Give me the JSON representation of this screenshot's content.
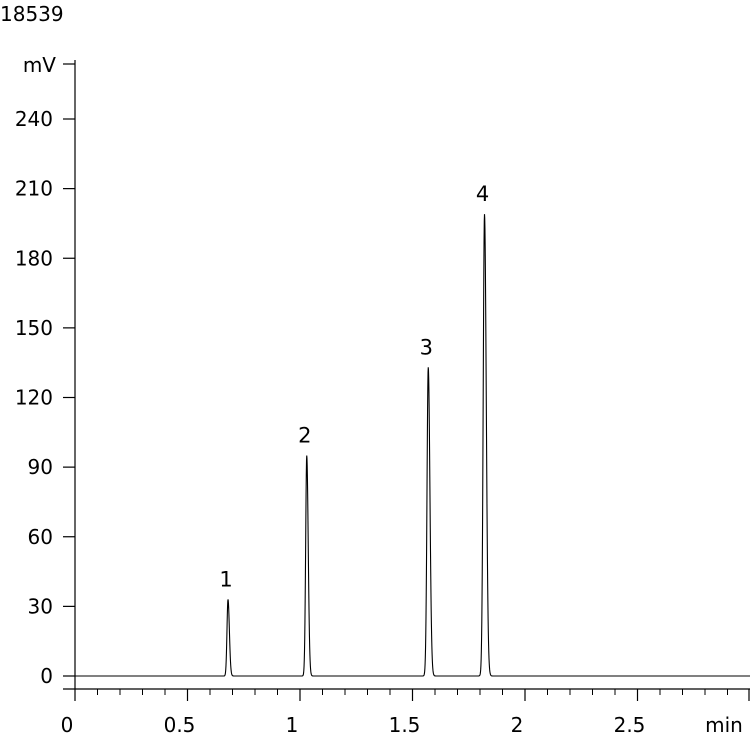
{
  "figure_id": "18539",
  "chart_data": {
    "type": "line",
    "title": "",
    "xlabel": "min",
    "ylabel": "mV",
    "xlim": [
      0,
      3
    ],
    "ylim": [
      -5,
      265
    ],
    "x_ticks": [
      0,
      0.5,
      1,
      1.5,
      2,
      2.5
    ],
    "x_tick_labels": [
      "0",
      "0.5",
      "1",
      "1.5",
      "2",
      "2.5"
    ],
    "y_ticks": [
      0,
      30,
      60,
      90,
      120,
      150,
      180,
      210,
      240
    ],
    "y_tick_labels": [
      "0",
      "30",
      "60",
      "90",
      "120",
      "150",
      "180",
      "210",
      "240"
    ],
    "grid": false,
    "line_color": "#000000",
    "peaks": [
      {
        "label": "1",
        "x": 0.68,
        "y": 33
      },
      {
        "label": "2",
        "x": 1.03,
        "y": 95
      },
      {
        "label": "3",
        "x": 1.57,
        "y": 133
      },
      {
        "label": "4",
        "x": 1.82,
        "y": 199
      }
    ]
  }
}
